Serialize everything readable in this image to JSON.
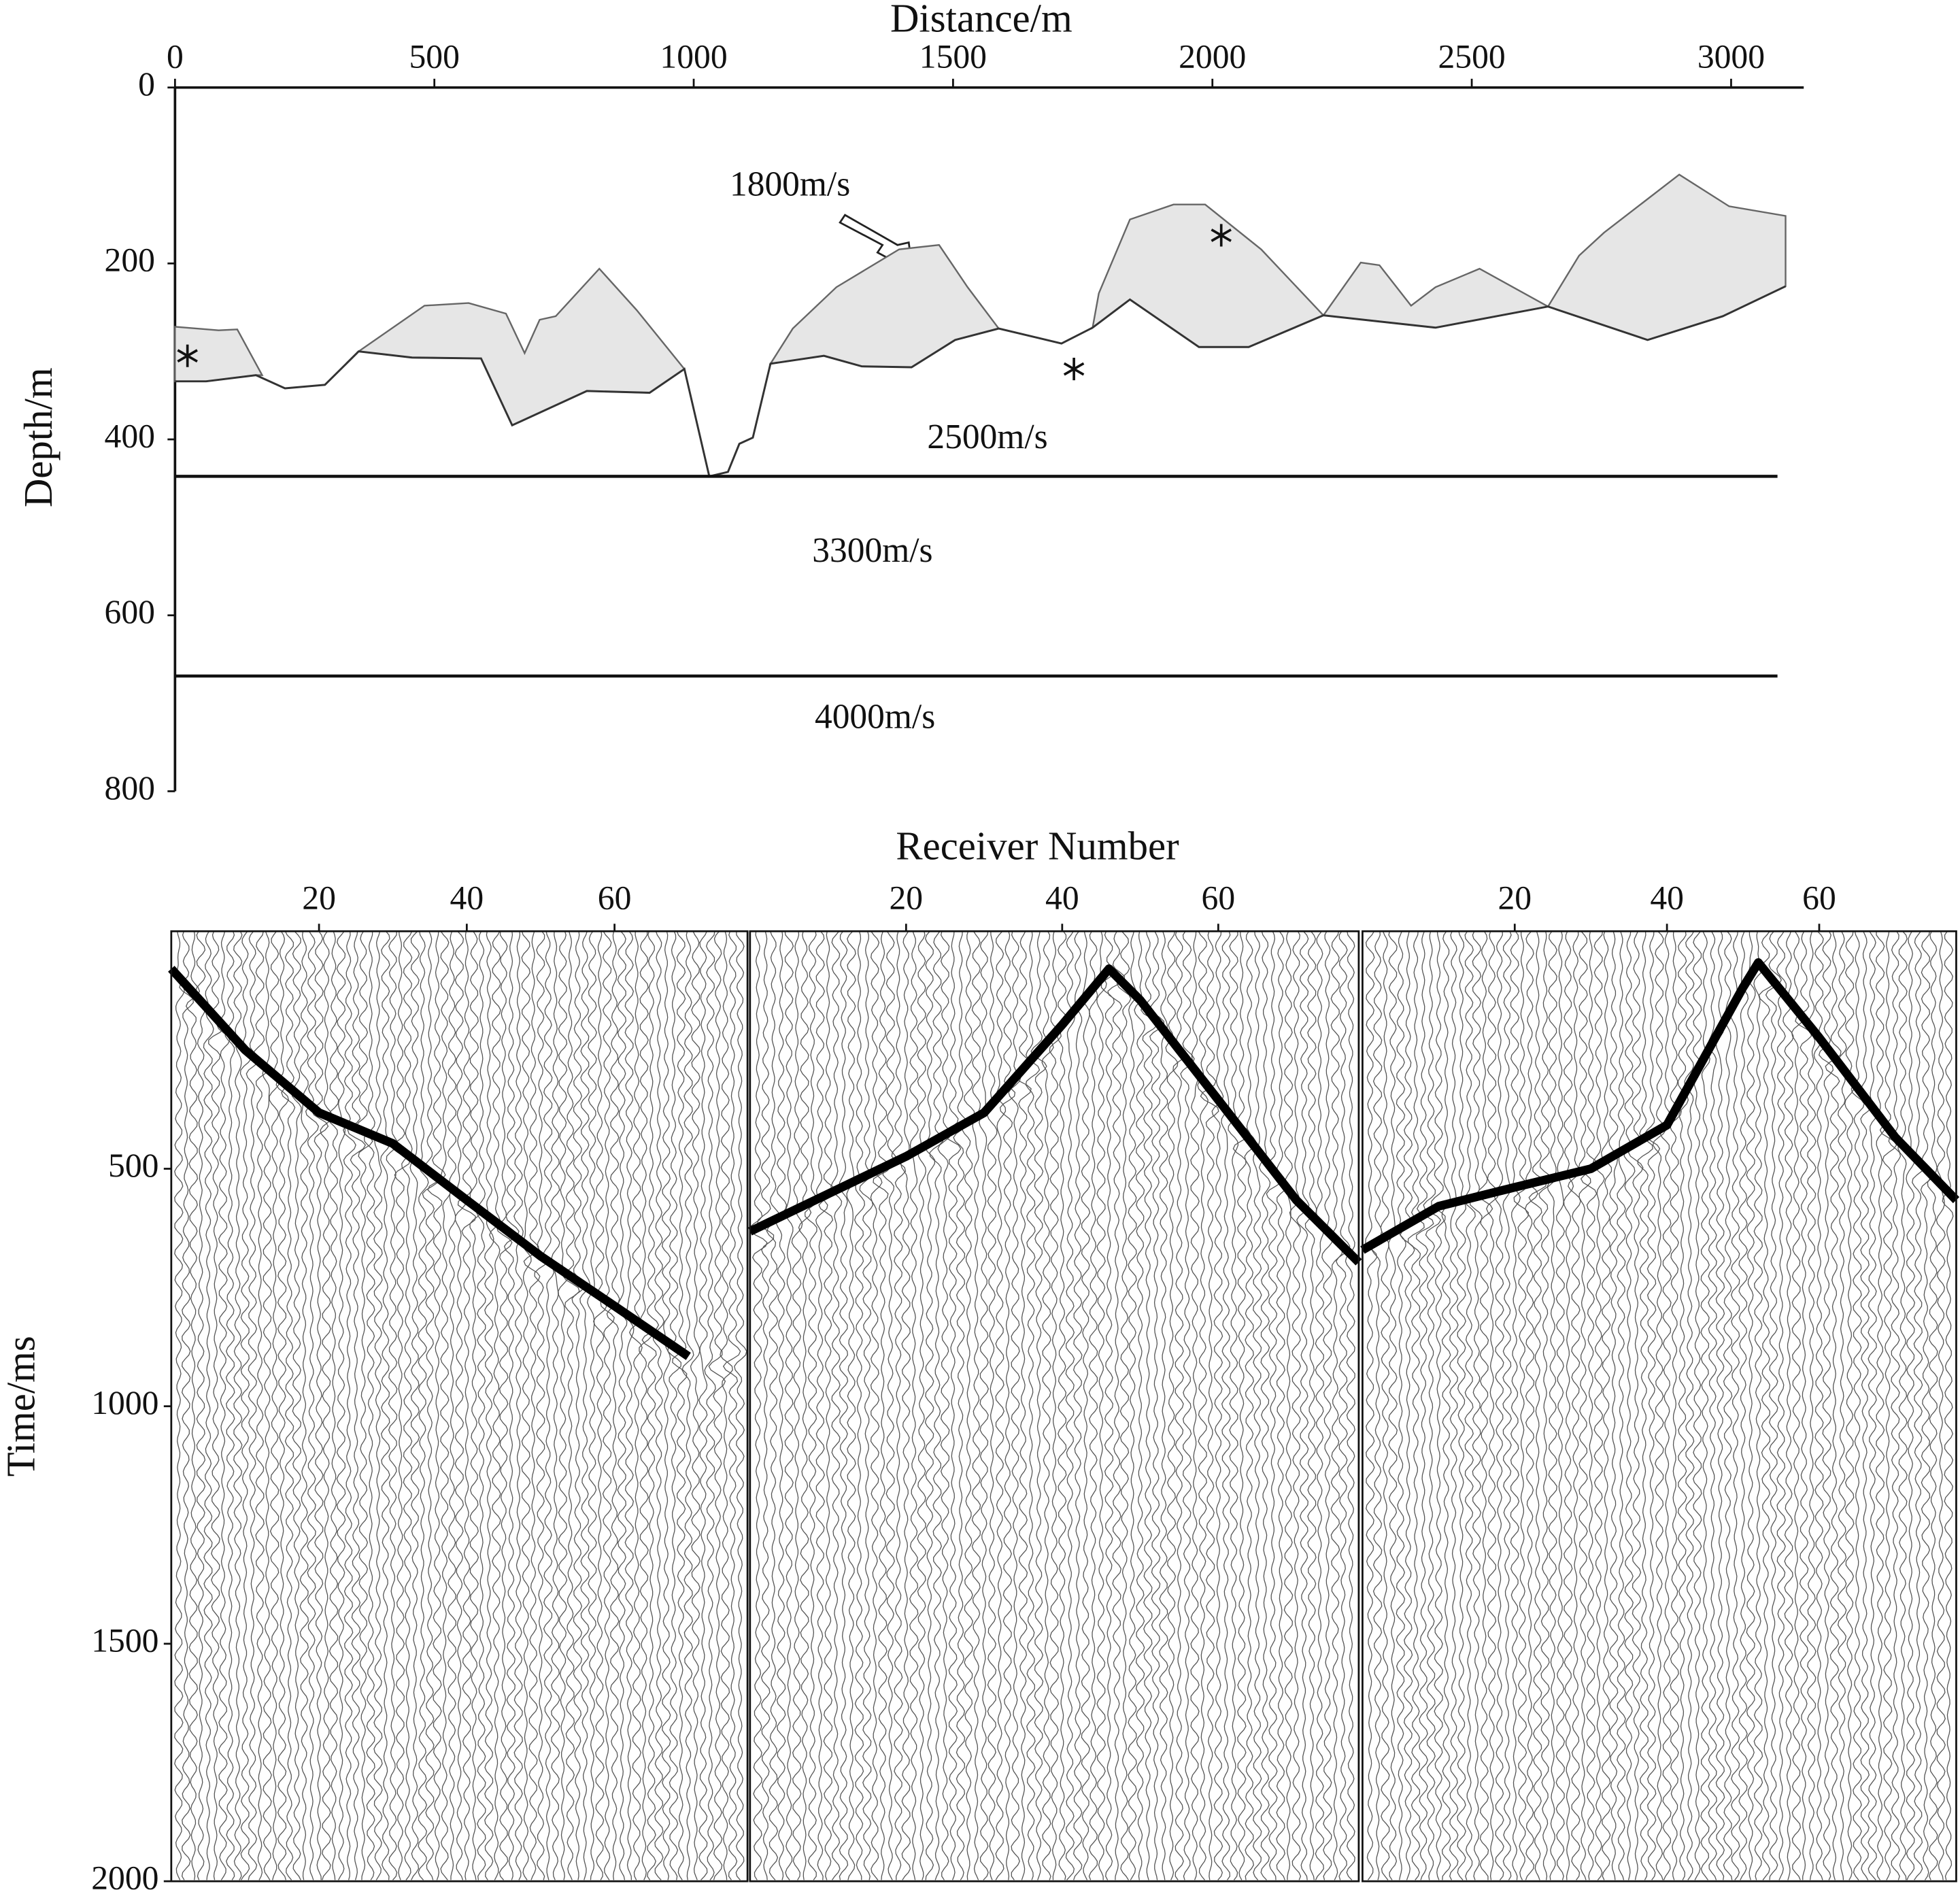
{
  "chart_data": [
    {
      "type": "profile",
      "xlabel": "Distance/m",
      "ylabel": "Depth/m",
      "xlim": [
        0,
        3140
      ],
      "xticks": [
        0,
        500,
        1000,
        1500,
        2000,
        2500,
        3000
      ],
      "ylim": [
        0,
        800
      ],
      "yticks": [
        0,
        200,
        400,
        600,
        800
      ],
      "y_inverted": true,
      "zone_color": "#e6e6e6",
      "surface": {
        "x": [
          0,
          60,
          156,
          212,
          289,
          354,
          457,
          590,
          650,
          794,
          915,
          982,
          1030,
          1066,
          1088,
          1114,
          1148,
          1251,
          1324,
          1420,
          1504,
          1588,
          1709,
          1769,
          1841,
          1974,
          2070,
          2214,
          2430,
          2647,
          2839,
          2984,
          3105
        ],
        "y": [
          334,
          334,
          327,
          342,
          338,
          300,
          307,
          308,
          384,
          345,
          347,
          320,
          442,
          437,
          405,
          398,
          314,
          305,
          317,
          318,
          287,
          274,
          291,
          273,
          241,
          295,
          295,
          259,
          273,
          249,
          287,
          260,
          226
        ]
      },
      "zones": [
        {
          "x": [
            0,
            84,
            120,
            168,
            156,
            60,
            0
          ],
          "y": [
            272,
            276,
            275,
            327,
            327,
            334,
            334
          ]
        },
        {
          "x": [
            354,
            481,
            566,
            638,
            674,
            703,
            734,
            818,
            890,
            982,
            915,
            794,
            650,
            590,
            457
          ],
          "y": [
            300,
            248,
            245,
            257,
            302,
            264,
            260,
            206,
            253,
            320,
            347,
            345,
            384,
            308,
            307
          ]
        },
        {
          "x": [
            1148,
            1191,
            1275,
            1396,
            1473,
            1528,
            1588,
            1504,
            1420,
            1324,
            1251
          ],
          "y": [
            314,
            274,
            227,
            184,
            179,
            227,
            274,
            287,
            318,
            317,
            305
          ]
        },
        {
          "x": [
            1769,
            1781,
            1841,
            1925,
            1986,
            2094,
            2214,
            2070,
            1974,
            1841
          ],
          "y": [
            273,
            234,
            150,
            133,
            133,
            184,
            259,
            295,
            295,
            241
          ]
        },
        {
          "x": [
            2214,
            2286,
            2322,
            2383,
            2430,
            2515,
            2647,
            2430
          ],
          "y": [
            259,
            199,
            202,
            248,
            227,
            206,
            249,
            273
          ]
        },
        {
          "x": [
            2647,
            2707,
            2755,
            2900,
            2996,
            3105,
            3105,
            2984,
            2839
          ],
          "y": [
            249,
            191,
            165,
            99,
            135,
            146,
            226,
            260,
            287
          ]
        }
      ],
      "interfaces": [
        442,
        669
      ],
      "sources": {
        "x": [
          24,
          1733,
          2017
        ],
        "y": [
          305,
          320,
          168
        ]
      },
      "annotations": [
        "1800m/s",
        "2500m/s",
        "3300m/s",
        "4000m/s"
      ]
    },
    {
      "type": "wiggle",
      "xlabel": "Receiver Number",
      "ylabel": "Time/ms",
      "xlim": [
        0,
        78
      ],
      "xticks": [
        20,
        40,
        60
      ],
      "ylim": [
        0,
        2000
      ],
      "yticks": [
        500,
        1000,
        1500,
        2000
      ],
      "y_inverted": true,
      "color": "#000000",
      "panels": [
        {
          "first_break": {
            "x": [
              0,
              10,
              20,
              30,
              40,
              50,
              60,
              70
            ],
            "y": [
              79,
              250,
              382,
              447,
              566,
              684,
              789,
              895
            ]
          }
        },
        {
          "first_break": {
            "x": [
              0,
              10,
              20,
              30,
              40,
              46,
              50,
              60,
              70,
              78
            ],
            "y": [
              632,
              553,
              474,
              382,
              197,
              79,
              145,
              355,
              566,
              697
            ]
          }
        },
        {
          "first_break": {
            "x": [
              0,
              10,
              20,
              30,
              40,
              50,
              52,
              60,
              70,
              78
            ],
            "y": [
              671,
              579,
              539,
              500,
              408,
              118,
              66,
              224,
              434,
              566
            ]
          }
        }
      ]
    }
  ]
}
